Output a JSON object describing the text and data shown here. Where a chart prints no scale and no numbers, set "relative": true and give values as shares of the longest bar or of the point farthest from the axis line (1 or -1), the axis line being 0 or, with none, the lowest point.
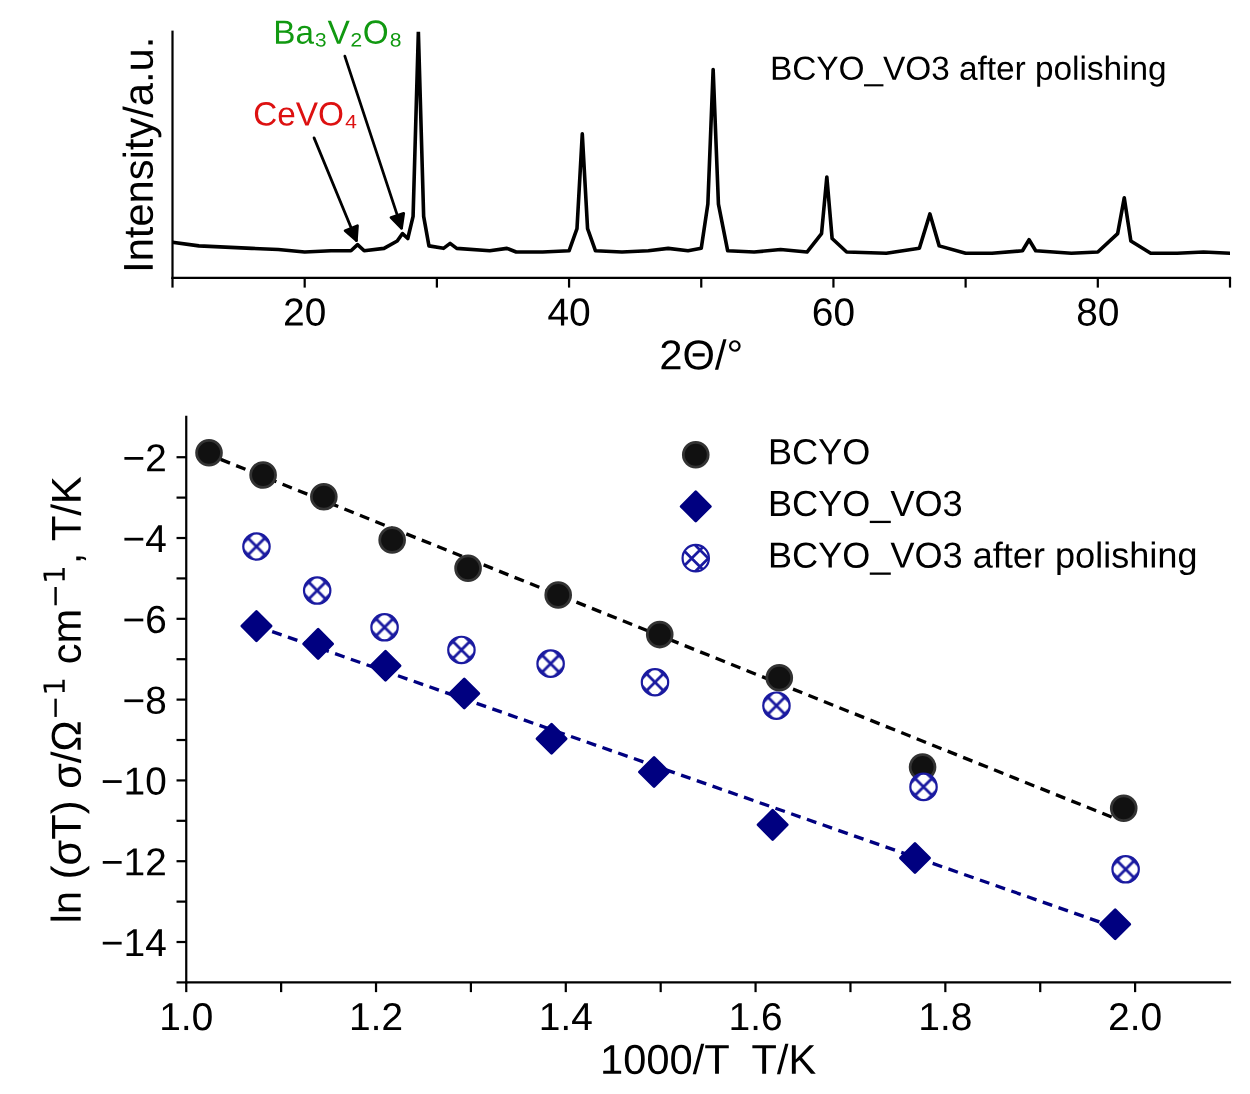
{
  "chart_data": [
    {
      "type": "line",
      "relative": true,
      "xlabel": "2Θ/°",
      "ylabel": "Intensity/a.u.",
      "tick_labels": "x",
      "grid": false,
      "legend": false,
      "marker": "none",
      "line_style": "solid",
      "xlim": [
        10,
        90
      ],
      "xticks": [
        {
          "value": 10,
          "label": null
        },
        20,
        {
          "value": 30,
          "label": null
        },
        40,
        {
          "value": 50,
          "label": null
        },
        60,
        {
          "value": 70,
          "label": null
        },
        80,
        {
          "value": 90,
          "label": null
        }
      ],
      "annotations": [
        {
          "text": "CeVO₄",
          "x": 24,
          "y": 0.14
        },
        {
          "text": "Ba₃V₂O₈",
          "x": 27.4,
          "y": 0.19
        },
        "BCYO_VO3 after polishing"
      ],
      "series": [
        {
          "color": "#000000",
          "x": [
            10,
            12,
            14,
            16,
            18,
            20,
            22,
            23.5,
            24,
            24.5,
            26,
            27.0,
            27.4,
            27.8,
            28.2,
            28.6,
            29.0,
            29.4,
            30.5,
            31,
            31.5,
            34,
            35.3,
            36,
            38,
            40,
            40.6,
            41,
            41.4,
            42,
            44,
            46,
            47.5,
            49,
            50,
            50.5,
            50.9,
            51.3,
            52,
            54,
            56,
            58,
            59.1,
            59.5,
            59.9,
            61,
            64,
            66.5,
            67.3,
            68,
            70,
            72,
            74.3,
            74.8,
            75.3,
            78,
            80,
            81.5,
            82,
            82.5,
            84,
            86,
            88,
            90
          ],
          "values": [
            0.145,
            0.13,
            0.125,
            0.12,
            0.115,
            0.105,
            0.11,
            0.11,
            0.135,
            0.11,
            0.12,
            0.15,
            0.18,
            0.16,
            0.25,
            1.0,
            0.25,
            0.13,
            0.12,
            0.14,
            0.12,
            0.11,
            0.12,
            0.105,
            0.105,
            0.11,
            0.2,
            0.585,
            0.2,
            0.11,
            0.105,
            0.11,
            0.12,
            0.11,
            0.12,
            0.3,
            0.846,
            0.3,
            0.11,
            0.105,
            0.115,
            0.105,
            0.18,
            0.41,
            0.16,
            0.105,
            0.1,
            0.12,
            0.26,
            0.13,
            0.1,
            0.1,
            0.11,
            0.155,
            0.11,
            0.1,
            0.105,
            0.18,
            0.325,
            0.15,
            0.1,
            0.1,
            0.105,
            0.1
          ]
        }
      ]
    },
    {
      "type": "scatter",
      "xlabel": "1000/T  T/K",
      "ylabel": "ln (σT) σ/Ω$^{−1}$ cm$^{−1}$, T/K",
      "grid": false,
      "legend": "top right",
      "xlim": [
        1.0,
        2.1
      ],
      "xticks": [
        {
          "value": 1.0,
          "label": "1.0"
        },
        {
          "value": 1.1,
          "label": null
        },
        1.2,
        {
          "value": 1.3,
          "label": null
        },
        1.4,
        {
          "value": 1.5,
          "label": null
        },
        1.6,
        {
          "value": 1.7,
          "label": null
        },
        1.8,
        {
          "value": 1.9,
          "label": null
        },
        {
          "value": 2.0,
          "label": "2.0"
        }
      ],
      "ylim": [
        -15,
        -1
      ],
      "yticks": [
        {
          "value": -15,
          "label": null
        },
        {
          "value": -14,
          "label": "−14"
        },
        {
          "value": -13,
          "label": null
        },
        {
          "value": -12,
          "label": "−12"
        },
        {
          "value": -11,
          "label": null
        },
        {
          "value": -10,
          "label": "−10"
        },
        {
          "value": -9,
          "label": null
        },
        {
          "value": -8,
          "label": "−8"
        },
        {
          "value": -7,
          "label": null
        },
        {
          "value": -6,
          "label": "−6"
        },
        {
          "value": -5,
          "label": null
        },
        {
          "value": -4,
          "label": "−4"
        },
        {
          "value": -3,
          "label": null
        },
        {
          "value": -2,
          "label": "−2"
        }
      ],
      "series": [
        {
          "name": "BCYO",
          "color": "#111111",
          "marker": "circle",
          "x": [
            1.024,
            1.081,
            1.145,
            1.217,
            1.297,
            1.392,
            1.499,
            1.625,
            1.776,
            1.988
          ],
          "values": [
            -1.89,
            -2.44,
            -2.98,
            -4.05,
            -4.75,
            -5.41,
            -6.39,
            -7.46,
            -9.67,
            -10.69
          ]
        },
        {
          "name": "BCYO_VO3",
          "color": "#000080",
          "marker": "diamond",
          "x": [
            1.074,
            1.139,
            1.21,
            1.293,
            1.385,
            1.493,
            1.618,
            1.768,
            1.979
          ],
          "values": [
            -6.18,
            -6.62,
            -7.16,
            -7.85,
            -8.97,
            -9.79,
            -11.1,
            -11.92,
            -13.56
          ]
        },
        {
          "name": "BCYO_VO3 after polishing",
          "color": "#1a1aa0",
          "marker": "circle",
          "x": [
            1.074,
            1.138,
            1.209,
            1.29,
            1.384,
            1.494,
            1.622,
            1.777,
            1.99
          ],
          "values": [
            -4.21,
            -5.3,
            -6.21,
            -6.77,
            -7.11,
            -7.57,
            -8.15,
            -10.16,
            -12.2
          ]
        },
        {
          "type": "line",
          "line_style": "dashed",
          "color": "#000000",
          "x": [
            1.02,
            1.98
          ],
          "values": [
            -1.9,
            -10.95
          ]
        },
        {
          "type": "line",
          "line_style": "dashed",
          "color": "#000080",
          "x": [
            1.074,
            1.979
          ],
          "values": [
            -6.18,
            -13.64
          ]
        }
      ]
    }
  ]
}
